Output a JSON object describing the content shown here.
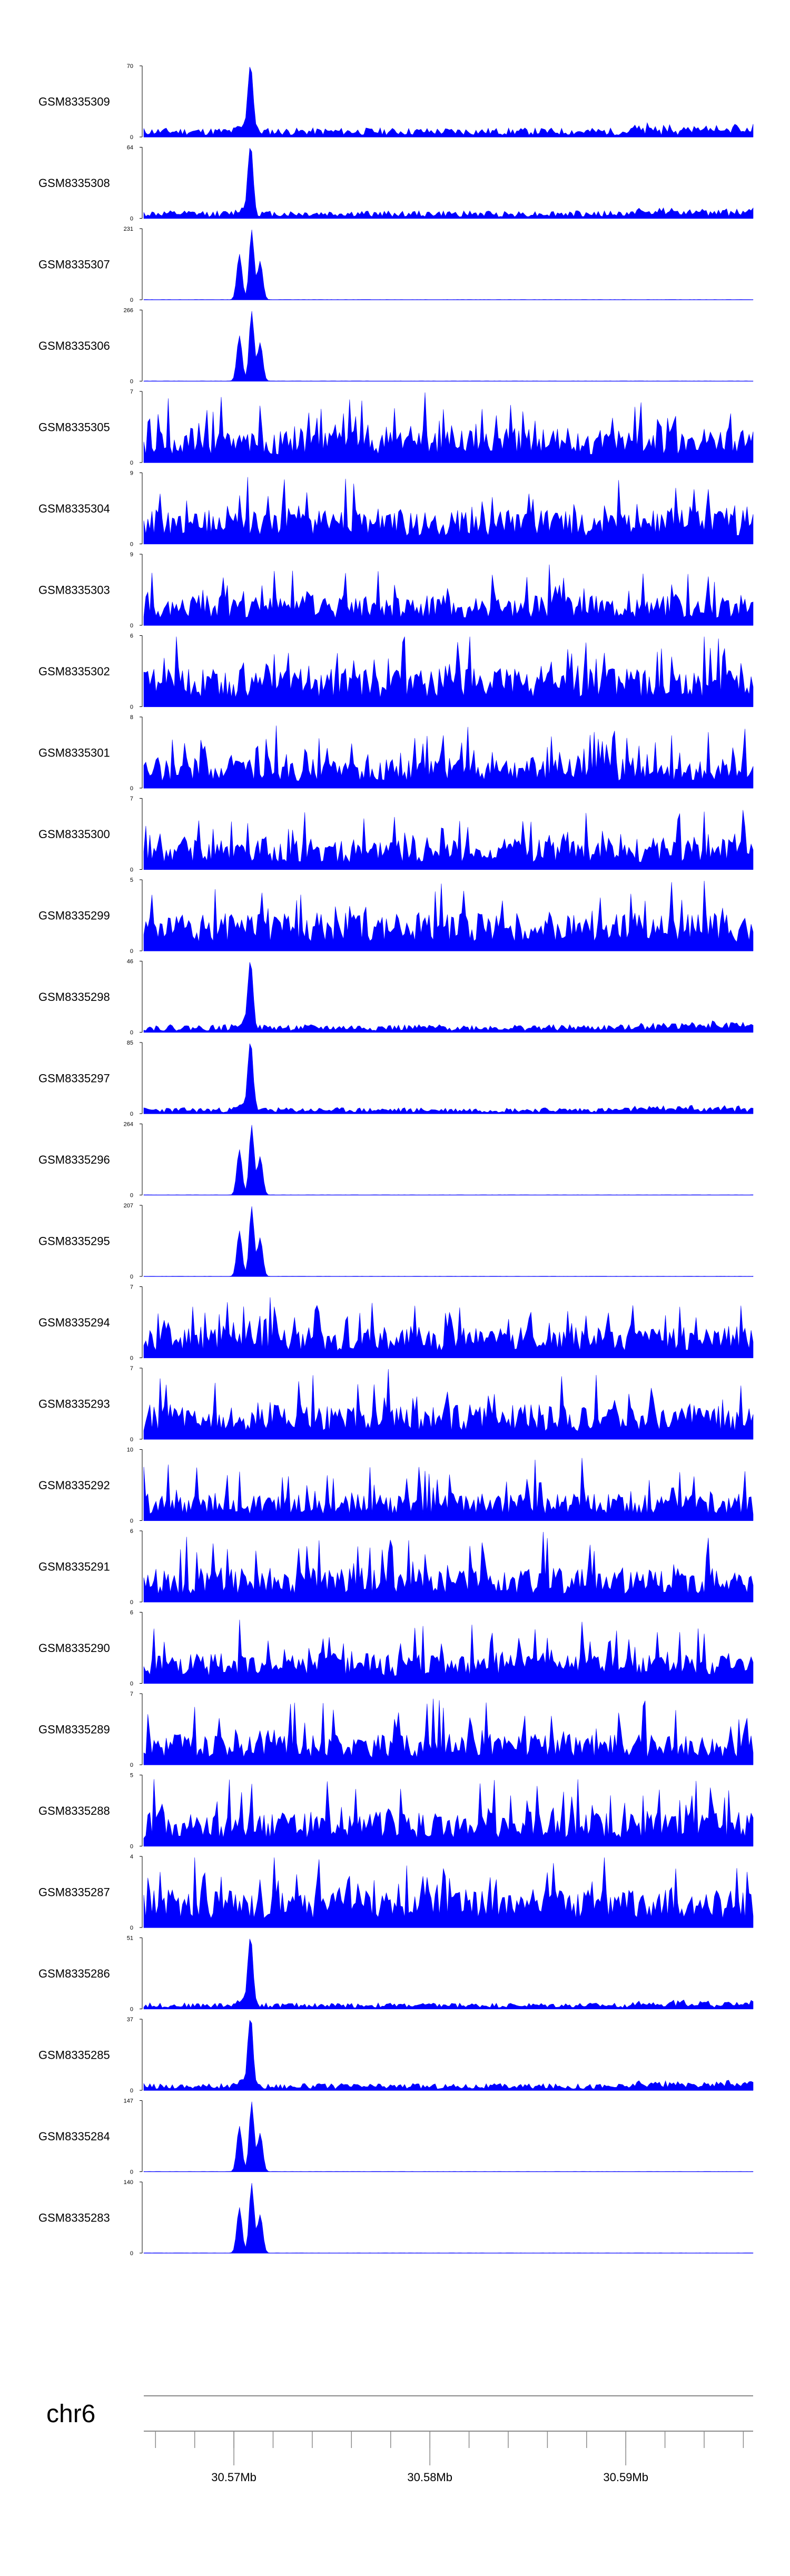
{
  "chart_data": {
    "type": "area",
    "chromosome": "chr6",
    "x_axis": {
      "ticks": [
        30.57,
        30.58,
        30.59
      ],
      "tick_labels": [
        "30.57Mb",
        "30.58Mb",
        "30.59Mb"
      ]
    },
    "tracks": [
      {
        "name": "GSM8335309",
        "ymax": "70",
        "ymin": "0",
        "profile": "noise_peak",
        "peak_height": 1.0,
        "baseline": 0.12,
        "seed": 11
      },
      {
        "name": "GSM8335308",
        "ymax": "64",
        "ymin": "0",
        "profile": "noise_peak",
        "peak_height": 1.0,
        "baseline": 0.1,
        "seed": 12
      },
      {
        "name": "GSM8335307",
        "ymax": "231",
        "ymin": "0",
        "profile": "double_peak",
        "peak_height": 1.0,
        "baseline": 0.0,
        "seed": 13
      },
      {
        "name": "GSM8335306",
        "ymax": "266",
        "ymin": "0",
        "profile": "double_peak",
        "peak_height": 1.0,
        "baseline": 0.0,
        "seed": 14
      },
      {
        "name": "GSM8335305",
        "ymax": "7",
        "ymin": "0",
        "profile": "noise",
        "peak_height": 0.0,
        "baseline": 0.45,
        "seed": 15
      },
      {
        "name": "GSM8335304",
        "ymax": "9",
        "ymin": "0",
        "profile": "noise",
        "peak_height": 0.0,
        "baseline": 0.45,
        "seed": 16
      },
      {
        "name": "GSM8335303",
        "ymax": "9",
        "ymin": "0",
        "profile": "noise",
        "peak_height": 0.0,
        "baseline": 0.4,
        "seed": 17
      },
      {
        "name": "GSM8335302",
        "ymax": "6",
        "ymin": "0",
        "profile": "noise",
        "peak_height": 0.0,
        "baseline": 0.5,
        "seed": 18
      },
      {
        "name": "GSM8335301",
        "ymax": "8",
        "ymin": "0",
        "profile": "noise",
        "peak_height": 0.0,
        "baseline": 0.4,
        "seed": 19
      },
      {
        "name": "GSM8335300",
        "ymax": "7",
        "ymin": "0",
        "profile": "noise",
        "peak_height": 0.0,
        "baseline": 0.4,
        "seed": 20
      },
      {
        "name": "GSM8335299",
        "ymax": "5",
        "ymin": "0",
        "profile": "noise",
        "peak_height": 0.0,
        "baseline": 0.5,
        "seed": 21
      },
      {
        "name": "GSM8335298",
        "ymax": "46",
        "ymin": "0",
        "profile": "noise_peak",
        "peak_height": 1.0,
        "baseline": 0.1,
        "seed": 22
      },
      {
        "name": "GSM8335297",
        "ymax": "85",
        "ymin": "0",
        "profile": "noise_peak",
        "peak_height": 1.0,
        "baseline": 0.08,
        "seed": 23
      },
      {
        "name": "GSM8335296",
        "ymax": "264",
        "ymin": "0",
        "profile": "double_peak",
        "peak_height": 1.0,
        "baseline": 0.0,
        "seed": 24
      },
      {
        "name": "GSM8335295",
        "ymax": "207",
        "ymin": "0",
        "profile": "double_peak",
        "peak_height": 1.0,
        "baseline": 0.0,
        "seed": 25
      },
      {
        "name": "GSM8335294",
        "ymax": "7",
        "ymin": "0",
        "profile": "noise",
        "peak_height": 0.0,
        "baseline": 0.4,
        "seed": 26
      },
      {
        "name": "GSM8335293",
        "ymax": "7",
        "ymin": "0",
        "profile": "noise",
        "peak_height": 0.0,
        "baseline": 0.45,
        "seed": 27
      },
      {
        "name": "GSM8335292",
        "ymax": "10",
        "ymin": "0",
        "profile": "noise",
        "peak_height": 0.0,
        "baseline": 0.35,
        "seed": 28
      },
      {
        "name": "GSM8335291",
        "ymax": "6",
        "ymin": "0",
        "profile": "noise",
        "peak_height": 0.0,
        "baseline": 0.45,
        "seed": 29
      },
      {
        "name": "GSM8335290",
        "ymax": "6",
        "ymin": "0",
        "profile": "noise",
        "peak_height": 0.0,
        "baseline": 0.4,
        "seed": 30
      },
      {
        "name": "GSM8335289",
        "ymax": "7",
        "ymin": "0",
        "profile": "noise",
        "peak_height": 0.0,
        "baseline": 0.4,
        "seed": 31
      },
      {
        "name": "GSM8335288",
        "ymax": "5",
        "ymin": "0",
        "profile": "noise",
        "peak_height": 0.0,
        "baseline": 0.45,
        "seed": 32
      },
      {
        "name": "GSM8335287",
        "ymax": "4",
        "ymin": "0",
        "profile": "noise",
        "peak_height": 0.0,
        "baseline": 0.5,
        "seed": 33
      },
      {
        "name": "GSM8335286",
        "ymax": "51",
        "ymin": "0",
        "profile": "noise_peak",
        "peak_height": 1.0,
        "baseline": 0.08,
        "seed": 34
      },
      {
        "name": "GSM8335285",
        "ymax": "37",
        "ymin": "0",
        "profile": "noise_peak",
        "peak_height": 1.0,
        "baseline": 0.09,
        "seed": 35
      },
      {
        "name": "GSM8335284",
        "ymax": "147",
        "ymin": "0",
        "profile": "double_peak",
        "peak_height": 1.0,
        "baseline": 0.0,
        "seed": 36
      },
      {
        "name": "GSM8335283",
        "ymax": "140",
        "ymin": "0",
        "profile": "double_peak",
        "peak_height": 1.0,
        "baseline": 0.0,
        "seed": 37
      }
    ]
  },
  "colors": {
    "signal": "#0000ff",
    "axis": "#000000",
    "baseline": "#8a8a8a"
  }
}
